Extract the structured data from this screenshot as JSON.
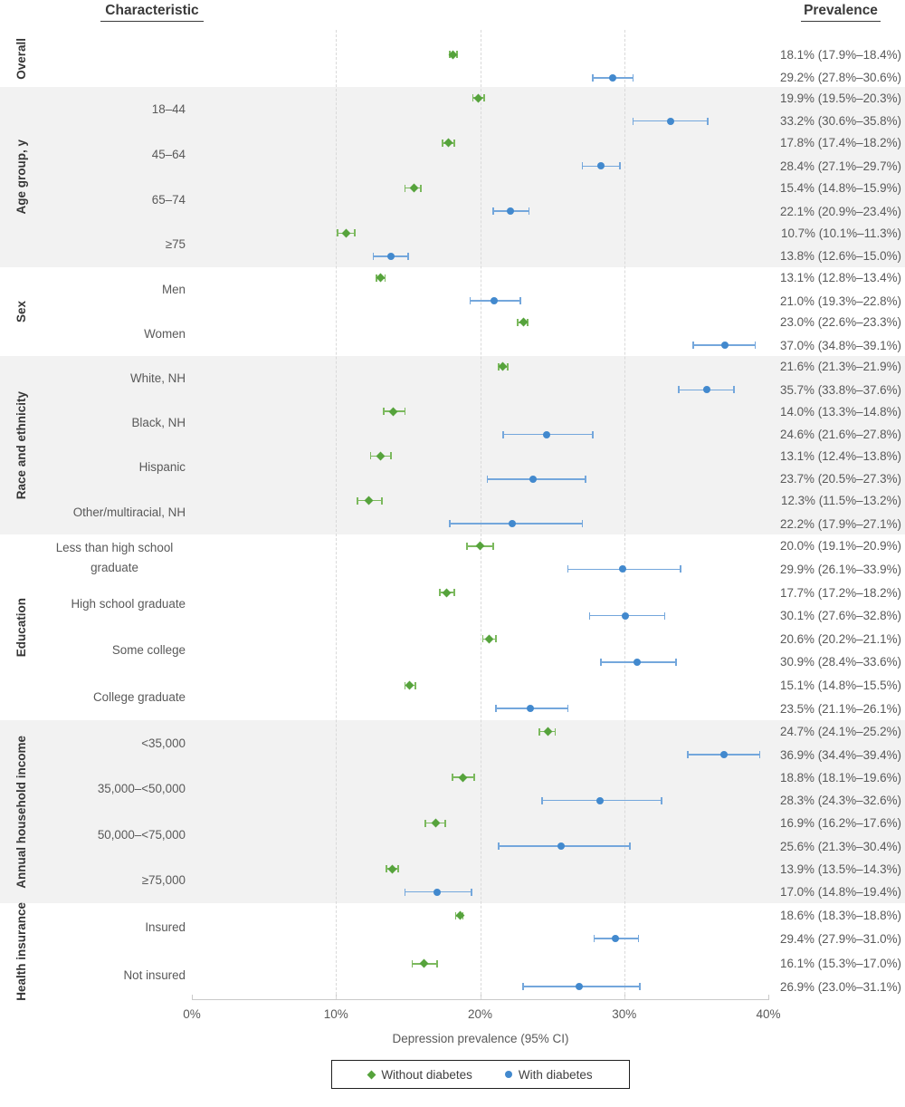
{
  "header": {
    "characteristic": "Characteristic",
    "prevalence": "Prevalence"
  },
  "axis": {
    "label": "Depression prevalence (95% CI)",
    "ticks": [
      "0%",
      "10%",
      "20%",
      "30%",
      "40%"
    ],
    "tick_values": [
      0,
      10,
      20,
      30,
      40
    ],
    "min": 0,
    "max": 40
  },
  "legend": {
    "items": [
      {
        "label": "Without diabetes",
        "marker": "diamond-icon",
        "color": "#56A33C"
      },
      {
        "label": "With diabetes",
        "marker": "circle-icon",
        "color": "#4289CE"
      }
    ]
  },
  "colors": {
    "without_marker": "#56A33C",
    "without_bar": "#7CB95E",
    "with_marker": "#4289CE",
    "with_bar": "#74A7DC",
    "band_gray": "#F2F2F2",
    "gridline": "#D9D9D9",
    "axis_line": "#C9C9C9",
    "text_gray": "#595959",
    "text_dark": "#3A3A3A"
  },
  "chart_data": {
    "type": "scatter",
    "subtype": "forest-plot-with-95ci",
    "xlabel": "Depression prevalence (95% CI)",
    "xlim": [
      0,
      40
    ],
    "x_tick_labels": [
      "0%",
      "10%",
      "20%",
      "30%",
      "40%"
    ],
    "grid": "vertical-dashed-at-10-20-30",
    "legend_position": "bottom",
    "series_names": [
      "Without diabetes",
      "With diabetes"
    ],
    "groups": [
      {
        "name": "Overall",
        "rows": [
          {
            "label": "",
            "without": {
              "mean": 18.1,
              "lo": 17.9,
              "hi": 18.4,
              "text": "18.1% (17.9%–18.4%)"
            },
            "with": {
              "mean": 29.2,
              "lo": 27.8,
              "hi": 30.6,
              "text": "29.2% (27.8%–30.6%)"
            }
          }
        ]
      },
      {
        "name": "Age group, y",
        "rows": [
          {
            "label": "18–44",
            "without": {
              "mean": 19.9,
              "lo": 19.5,
              "hi": 20.3,
              "text": "19.9% (19.5%–20.3%)"
            },
            "with": {
              "mean": 33.2,
              "lo": 30.6,
              "hi": 35.8,
              "text": "33.2% (30.6%–35.8%)"
            }
          },
          {
            "label": "45–64",
            "without": {
              "mean": 17.8,
              "lo": 17.4,
              "hi": 18.2,
              "text": "17.8% (17.4%–18.2%)"
            },
            "with": {
              "mean": 28.4,
              "lo": 27.1,
              "hi": 29.7,
              "text": "28.4% (27.1%–29.7%)"
            }
          },
          {
            "label": "65–74",
            "without": {
              "mean": 15.4,
              "lo": 14.8,
              "hi": 15.9,
              "text": "15.4% (14.8%–15.9%)"
            },
            "with": {
              "mean": 22.1,
              "lo": 20.9,
              "hi": 23.4,
              "text": "22.1% (20.9%–23.4%)"
            }
          },
          {
            "label": "≥75",
            "without": {
              "mean": 10.7,
              "lo": 10.1,
              "hi": 11.3,
              "text": "10.7% (10.1%–11.3%)"
            },
            "with": {
              "mean": 13.8,
              "lo": 12.6,
              "hi": 15.0,
              "text": "13.8% (12.6%–15.0%)"
            }
          }
        ]
      },
      {
        "name": "Sex",
        "rows": [
          {
            "label": "Men",
            "without": {
              "mean": 13.1,
              "lo": 12.8,
              "hi": 13.4,
              "text": "13.1% (12.8%–13.4%)"
            },
            "with": {
              "mean": 21.0,
              "lo": 19.3,
              "hi": 22.8,
              "text": "21.0% (19.3%–22.8%)"
            }
          },
          {
            "label": "Women",
            "without": {
              "mean": 23.0,
              "lo": 22.6,
              "hi": 23.3,
              "text": "23.0% (22.6%–23.3%)"
            },
            "with": {
              "mean": 37.0,
              "lo": 34.8,
              "hi": 39.1,
              "text": "37.0% (34.8%–39.1%)"
            }
          }
        ]
      },
      {
        "name": "Race and ethnicity",
        "rows": [
          {
            "label": "White, NH",
            "without": {
              "mean": 21.6,
              "lo": 21.3,
              "hi": 21.9,
              "text": "21.6% (21.3%–21.9%)"
            },
            "with": {
              "mean": 35.7,
              "lo": 33.8,
              "hi": 37.6,
              "text": "35.7% (33.8%–37.6%)"
            }
          },
          {
            "label": "Black, NH",
            "without": {
              "mean": 14.0,
              "lo": 13.3,
              "hi": 14.8,
              "text": "14.0% (13.3%–14.8%)"
            },
            "with": {
              "mean": 24.6,
              "lo": 21.6,
              "hi": 27.8,
              "text": "24.6% (21.6%–27.8%)"
            }
          },
          {
            "label": "Hispanic",
            "without": {
              "mean": 13.1,
              "lo": 12.4,
              "hi": 13.8,
              "text": "13.1% (12.4%–13.8%)"
            },
            "with": {
              "mean": 23.7,
              "lo": 20.5,
              "hi": 27.3,
              "text": "23.7% (20.5%–27.3%)"
            }
          },
          {
            "label": "Other/multiracial, NH",
            "without": {
              "mean": 12.3,
              "lo": 11.5,
              "hi": 13.2,
              "text": "12.3% (11.5%–13.2%)"
            },
            "with": {
              "mean": 22.2,
              "lo": 17.9,
              "hi": 27.1,
              "text": "22.2% (17.9%–27.1%)"
            }
          }
        ]
      },
      {
        "name": "Education",
        "rows": [
          {
            "label": "Less than high school graduate",
            "without": {
              "mean": 20.0,
              "lo": 19.1,
              "hi": 20.9,
              "text": "20.0% (19.1%–20.9%)"
            },
            "with": {
              "mean": 29.9,
              "lo": 26.1,
              "hi": 33.9,
              "text": "29.9% (26.1%–33.9%)"
            }
          },
          {
            "label": "High school graduate",
            "without": {
              "mean": 17.7,
              "lo": 17.2,
              "hi": 18.2,
              "text": "17.7% (17.2%–18.2%)"
            },
            "with": {
              "mean": 30.1,
              "lo": 27.6,
              "hi": 32.8,
              "text": "30.1% (27.6%–32.8%)"
            }
          },
          {
            "label": "Some college",
            "without": {
              "mean": 20.6,
              "lo": 20.2,
              "hi": 21.1,
              "text": "20.6% (20.2%–21.1%)"
            },
            "with": {
              "mean": 30.9,
              "lo": 28.4,
              "hi": 33.6,
              "text": "30.9% (28.4%–33.6%)"
            }
          },
          {
            "label": "College graduate",
            "without": {
              "mean": 15.1,
              "lo": 14.8,
              "hi": 15.5,
              "text": "15.1% (14.8%–15.5%)"
            },
            "with": {
              "mean": 23.5,
              "lo": 21.1,
              "hi": 26.1,
              "text": "23.5% (21.1%–26.1%)"
            }
          }
        ]
      },
      {
        "name": "Annual household income",
        "rows": [
          {
            "label": "<35,000",
            "without": {
              "mean": 24.7,
              "lo": 24.1,
              "hi": 25.2,
              "text": "24.7% (24.1%–25.2%)"
            },
            "with": {
              "mean": 36.9,
              "lo": 34.4,
              "hi": 39.4,
              "text": "36.9% (34.4%–39.4%)"
            }
          },
          {
            "label": "35,000–<50,000",
            "without": {
              "mean": 18.8,
              "lo": 18.1,
              "hi": 19.6,
              "text": "18.8% (18.1%–19.6%)"
            },
            "with": {
              "mean": 28.3,
              "lo": 24.3,
              "hi": 32.6,
              "text": "28.3% (24.3%–32.6%)"
            }
          },
          {
            "label": "50,000–<75,000",
            "without": {
              "mean": 16.9,
              "lo": 16.2,
              "hi": 17.6,
              "text": "16.9% (16.2%–17.6%)"
            },
            "with": {
              "mean": 25.6,
              "lo": 21.3,
              "hi": 30.4,
              "text": "25.6% (21.3%–30.4%)"
            }
          },
          {
            "label": "≥75,000",
            "without": {
              "mean": 13.9,
              "lo": 13.5,
              "hi": 14.3,
              "text": "13.9% (13.5%–14.3%)"
            },
            "with": {
              "mean": 17.0,
              "lo": 14.8,
              "hi": 19.4,
              "text": "17.0% (14.8%–19.4%)"
            }
          }
        ]
      },
      {
        "name": "Health insurance",
        "rows": [
          {
            "label": "Insured",
            "without": {
              "mean": 18.6,
              "lo": 18.3,
              "hi": 18.8,
              "text": "18.6% (18.3%–18.8%)"
            },
            "with": {
              "mean": 29.4,
              "lo": 27.9,
              "hi": 31.0,
              "text": "29.4% (27.9%–31.0%)"
            }
          },
          {
            "label": "Not insured",
            "without": {
              "mean": 16.1,
              "lo": 15.3,
              "hi": 17.0,
              "text": "16.1% (15.3%–17.0%)"
            },
            "with": {
              "mean": 26.9,
              "lo": 23.0,
              "hi": 31.1,
              "text": "26.9% (23.0%–31.1%)"
            }
          }
        ]
      }
    ]
  }
}
